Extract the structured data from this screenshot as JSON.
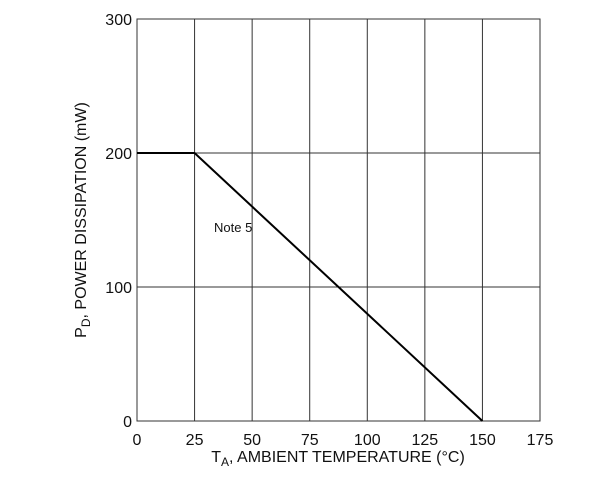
{
  "chart_data": {
    "type": "line",
    "x_label": [
      "T",
      "A",
      ", AMBIENT TEMPERATURE (°C)"
    ],
    "y_label": [
      "P",
      "D",
      ", POWER DISSIPATION (mW)"
    ],
    "annotation": "Note 5",
    "x": [
      0,
      25,
      150
    ],
    "series": [
      {
        "color": "#000000",
        "values": [
          200,
          200,
          0
        ]
      }
    ],
    "xlim": [
      0,
      175
    ],
    "xticks": [
      0,
      25,
      50,
      75,
      100,
      125,
      150,
      175
    ],
    "ylim": [
      0,
      300
    ],
    "yticks": [
      0,
      100,
      200,
      300
    ],
    "grid": true
  }
}
